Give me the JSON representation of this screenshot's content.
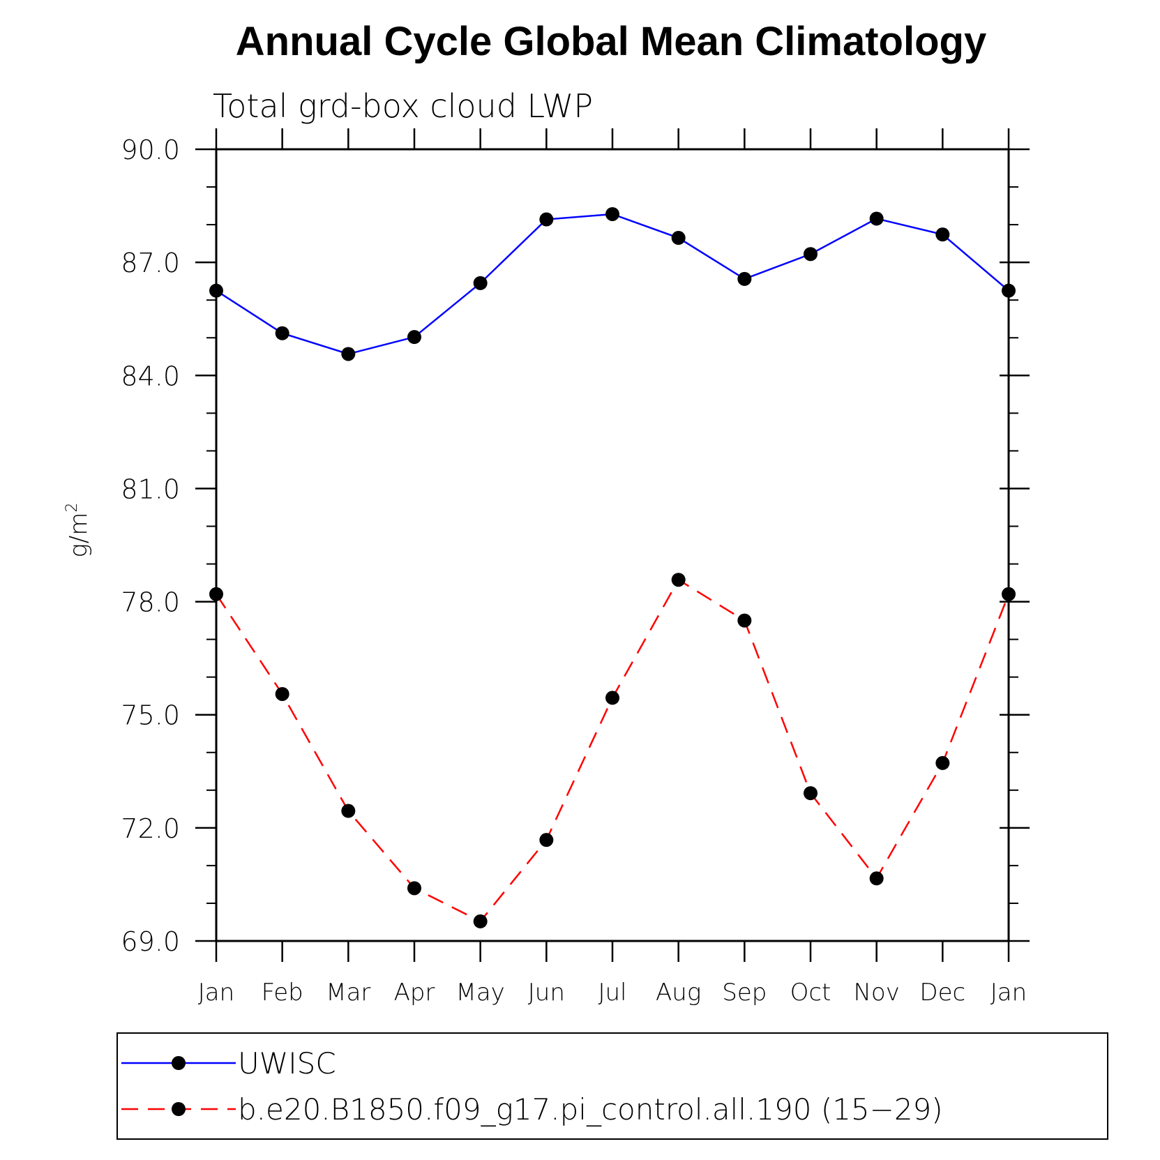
{
  "chart_data": {
    "type": "line",
    "title": "Annual Cycle Global Mean Climatology",
    "subtitle": "Total grd-box cloud LWP",
    "ylabel": "g/m",
    "ylabel_sup": "2",
    "xlabel": "",
    "categories": [
      "Jan",
      "Feb",
      "Mar",
      "Apr",
      "May",
      "Jun",
      "Jul",
      "Aug",
      "Sep",
      "Oct",
      "Nov",
      "Dec",
      "Jan"
    ],
    "ylim": [
      69.0,
      90.0
    ],
    "yticks": [
      "69.0",
      "72.0",
      "75.0",
      "78.0",
      "81.0",
      "84.0",
      "87.0",
      "90.0"
    ],
    "ytick_values": [
      69,
      72,
      75,
      78,
      81,
      84,
      87,
      90
    ],
    "grid": false,
    "legend_position": "bottom",
    "series": [
      {
        "name": "UWISC",
        "color": "#0000ff",
        "style": "solid",
        "marker": "filled-circle",
        "values": [
          86.25,
          85.12,
          84.57,
          85.02,
          86.45,
          88.14,
          88.28,
          87.65,
          86.56,
          87.22,
          88.16,
          87.74,
          86.25
        ]
      },
      {
        "name": "b.e20.B1850.f09_g17.pi_control.all.190 (15−29)",
        "color": "#ff0000",
        "style": "dashed",
        "marker": "filled-circle",
        "values": [
          78.2,
          75.55,
          72.45,
          70.4,
          69.52,
          71.68,
          75.45,
          78.58,
          77.5,
          72.92,
          70.66,
          73.72,
          78.2
        ]
      }
    ]
  }
}
